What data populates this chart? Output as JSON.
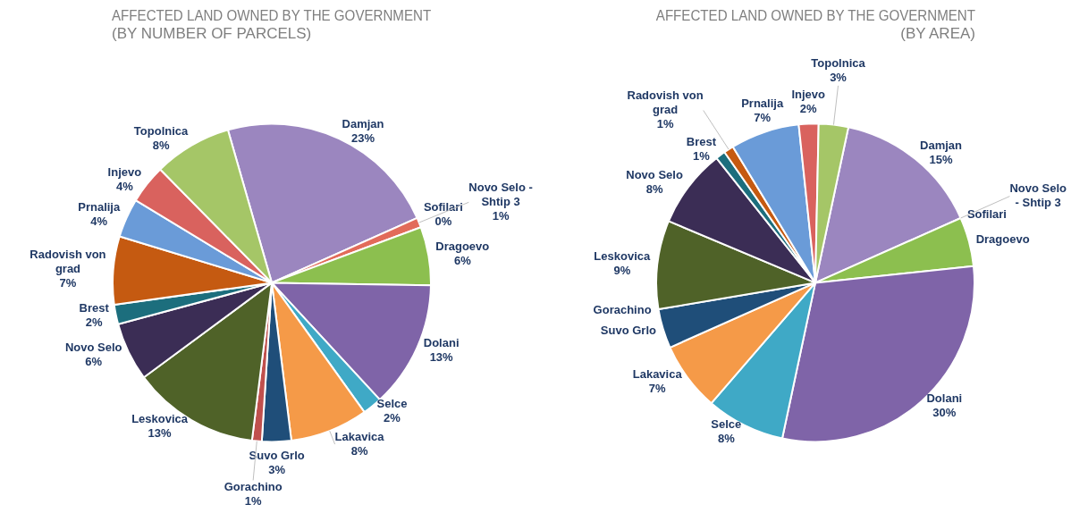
{
  "chart_data": [
    {
      "type": "pie",
      "title": "AFFECTED LAND OWNED BY THE GOVERNMENT\n(BY NUMBER OF PARCELS)",
      "categories": [
        "Damjan",
        "Sofilari",
        "Novo Selo -\nShtip 3",
        "Dragoevo",
        "Dolani",
        "Selce",
        "Lakavica",
        "Suvo Grlo",
        "Gorachino",
        "Leskovica",
        "Novo Selo",
        "Brest",
        "Radovish von\ngrad",
        "Prnalija",
        "Injevo",
        "Topolnica"
      ],
      "values": [
        23,
        0,
        1,
        6,
        13,
        2,
        8,
        3,
        1,
        13,
        6,
        2,
        7,
        4,
        4,
        8
      ],
      "value_labels": [
        "23%",
        "0%",
        "1%",
        "6%",
        "13%",
        "2%",
        "8%",
        "3%",
        "1%",
        "13%",
        "6%",
        "2%",
        "7%",
        "4%",
        "4%",
        "8%"
      ],
      "colors": [
        "#9b86bf",
        "#c0504d",
        "#e26b5a",
        "#8cbf4f",
        "#7f64a8",
        "#3fa9c6",
        "#f59a48",
        "#1f4e79",
        "#c0504d",
        "#4f6228",
        "#3b2d55",
        "#1c6e7d",
        "#c55a11",
        "#6a9bd8",
        "#d9625e",
        "#a5c667"
      ],
      "legend": false
    },
    {
      "type": "pie",
      "title": "AFFECTED LAND OWNED BY THE GOVERNMENT\n(BY AREA)",
      "categories": [
        "Damjan",
        "Sofilari",
        "Novo Selo\n- Shtip 3",
        "Dragoevo",
        "Dolani",
        "Selce",
        "Lakavica",
        "Suvo Grlo",
        "Gorachino",
        "Leskovica",
        "Novo Selo",
        "Brest",
        "Radovish von\ngrad",
        "Prnalija",
        "Injevo",
        "Topolnica"
      ],
      "values": [
        15,
        0,
        0,
        5,
        30,
        8,
        7,
        4,
        0,
        9,
        8,
        1,
        1,
        7,
        2,
        3
      ],
      "value_labels": [
        "15%",
        null,
        null,
        null,
        "30%",
        "8%",
        "7%",
        null,
        null,
        "9%",
        "8%",
        "1%",
        "1%",
        "7%",
        "2%",
        "3%"
      ],
      "colors": [
        "#9b86bf",
        "#c0504d",
        "#e26b5a",
        "#8cbf4f",
        "#7f64a8",
        "#3fa9c6",
        "#f59a48",
        "#1f4e79",
        "#c0504d",
        "#4f6228",
        "#3b2d55",
        "#1c6e7d",
        "#c55a11",
        "#6a9bd8",
        "#d9625e",
        "#a5c667"
      ],
      "legend": false
    }
  ]
}
